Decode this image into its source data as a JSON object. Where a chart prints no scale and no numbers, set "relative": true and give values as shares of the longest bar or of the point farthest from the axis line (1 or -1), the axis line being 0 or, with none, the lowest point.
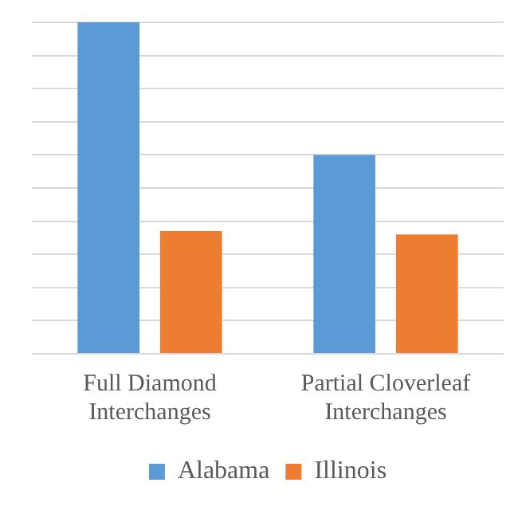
{
  "chart_data": {
    "type": "bar",
    "relative": true,
    "categories": [
      [
        "Full Diamond",
        "Interchanges"
      ],
      [
        "Partial Cloverleaf",
        "Interchanges"
      ]
    ],
    "series": [
      {
        "name": "Alabama",
        "color": "#5b9bd5",
        "values": [
          1,
          0.6
        ]
      },
      {
        "name": "Illinois",
        "color": "#ed7d31",
        "values": [
          0.37,
          0.36
        ]
      }
    ],
    "grid": "y",
    "legend": "bottom"
  }
}
